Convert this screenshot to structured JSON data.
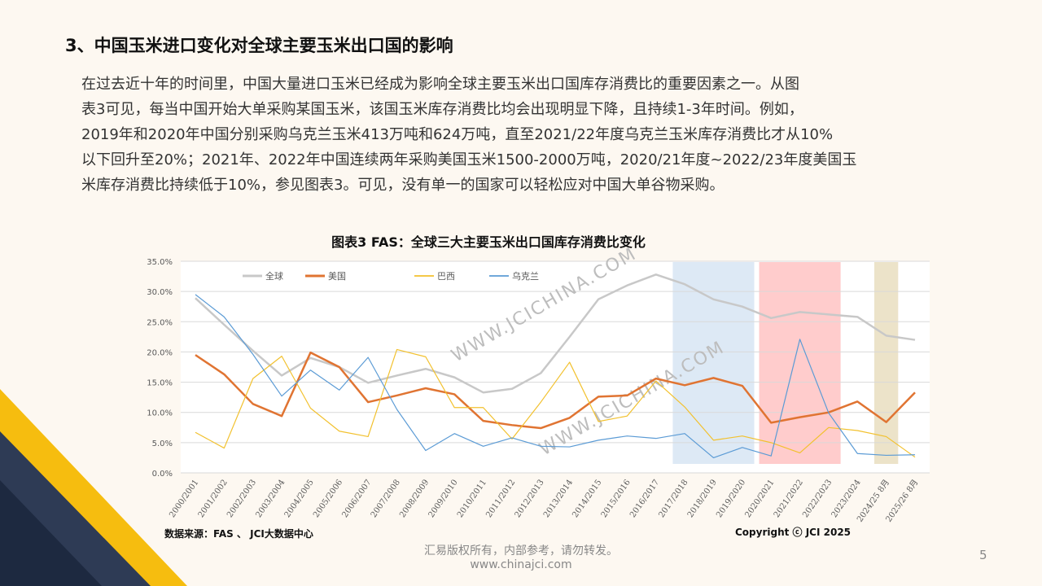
{
  "heading": "3、中国玉米进口变化对全球主要玉米出口国的影响",
  "paragraph_lines": [
    "在过去近十年的时间里，中国大量进口玉米已经成为影响全球主要玉米出口国库存消费比的重要因素之一。从图",
    "表3可见，每当中国开始大单采购某国玉米，该国玉米库存消费比均会出现明显下降，且持续1-3年时间。例如，",
    "2019年和2020年中国分别采购乌克兰玉米413万吨和624万吨，直至2021/22年度乌克兰玉米库存消费比才从10%",
    "以下回升至20%；2021年、2022年中国连续两年采购美国玉米1500-2000万吨，2020/21年度~2022/23年度美国玉",
    "米库存消费比持续低于10%，参见图表3。可见，没有单一的国家可以轻松应对中国大单谷物采购。"
  ],
  "chart_title": "图表3  FAS：全球三大主要玉米出口国库存消费比变化",
  "watermark": "WWW.JCICHINA.COM",
  "source": "数据来源：FAS 、 JCI大数据中心",
  "copyright": "Copyright ⓒ JCI  2025",
  "footer_line1": "汇易版权所有，内部参考，请勿转发。",
  "footer_line2": "www.chinajci.com",
  "page_number": "5",
  "chart_data": {
    "type": "line",
    "title": "图表3  FAS：全球三大主要玉米出口国库存消费比变化",
    "ylim": [
      0,
      35
    ],
    "yticks": [
      "0.0%",
      "5.0%",
      "10.0%",
      "15.0%",
      "20.0%",
      "25.0%",
      "30.0%",
      "35.0%"
    ],
    "legend_position": "top",
    "categories": [
      "2000/2001",
      "2001/2002",
      "2002/2003",
      "2003/2004",
      "2004/2005",
      "2005/2006",
      "2006/2007",
      "2007/2008",
      "2008/2009",
      "2009/2010",
      "2010/2011",
      "2011/2012",
      "2012/2013",
      "2013/2014",
      "2014/2015",
      "2015/2016",
      "2016/2017",
      "2017/2018",
      "2018/2019",
      "2019/2020",
      "2020/2021",
      "2021/2022",
      "2022/2023",
      "2023/2024",
      "2024/25 8月",
      "2025/26 8月"
    ],
    "series": [
      {
        "name": "全球",
        "color": "#c8c8c8",
        "width": 2.5,
        "values": [
          28.9,
          24.5,
          20.2,
          16.1,
          19.0,
          17.5,
          14.9,
          16.1,
          17.2,
          15.8,
          13.3,
          13.9,
          16.5,
          22.5,
          28.7,
          31.0,
          32.8,
          31.2,
          28.7,
          27.5,
          25.6,
          26.6,
          26.2,
          25.8,
          22.7,
          22.0
        ]
      },
      {
        "name": "美国",
        "color": "#e07432",
        "width": 2.5,
        "values": [
          19.5,
          16.3,
          11.4,
          9.4,
          19.9,
          17.5,
          11.7,
          12.8,
          14.0,
          13.0,
          8.6,
          7.9,
          7.4,
          9.1,
          12.6,
          12.8,
          15.6,
          14.5,
          15.7,
          14.4,
          8.3,
          9.2,
          10.0,
          11.8,
          8.4,
          13.3
        ]
      },
      {
        "name": "巴西",
        "color": "#f2c12e",
        "width": 1.2,
        "values": [
          6.7,
          4.1,
          15.6,
          19.3,
          10.7,
          6.9,
          6.0,
          20.4,
          19.2,
          10.8,
          10.8,
          5.6,
          11.7,
          18.3,
          8.5,
          9.4,
          15.2,
          10.9,
          5.4,
          6.1,
          5.0,
          3.3,
          7.5,
          7.0,
          6.0,
          2.6
        ]
      },
      {
        "name": "乌克兰",
        "color": "#5b9bd5",
        "width": 1.2,
        "values": [
          29.5,
          25.8,
          19.6,
          12.7,
          17.0,
          13.7,
          19.1,
          10.5,
          3.7,
          6.5,
          4.4,
          5.8,
          4.4,
          4.3,
          5.4,
          6.1,
          5.7,
          6.5,
          2.5,
          4.2,
          2.8,
          22.1,
          9.9,
          3.2,
          2.9,
          3.0
        ]
      }
    ],
    "highlight_bands": [
      {
        "from": "2017/2018",
        "to": "2019/2020",
        "color": "#dde9f5"
      },
      {
        "from": "2020/2021",
        "to": "2022/2023",
        "color": "#ffcccc"
      },
      {
        "from": "2024/25 8月",
        "to": "2024/25 8月",
        "color": "#ece3c9"
      }
    ]
  }
}
